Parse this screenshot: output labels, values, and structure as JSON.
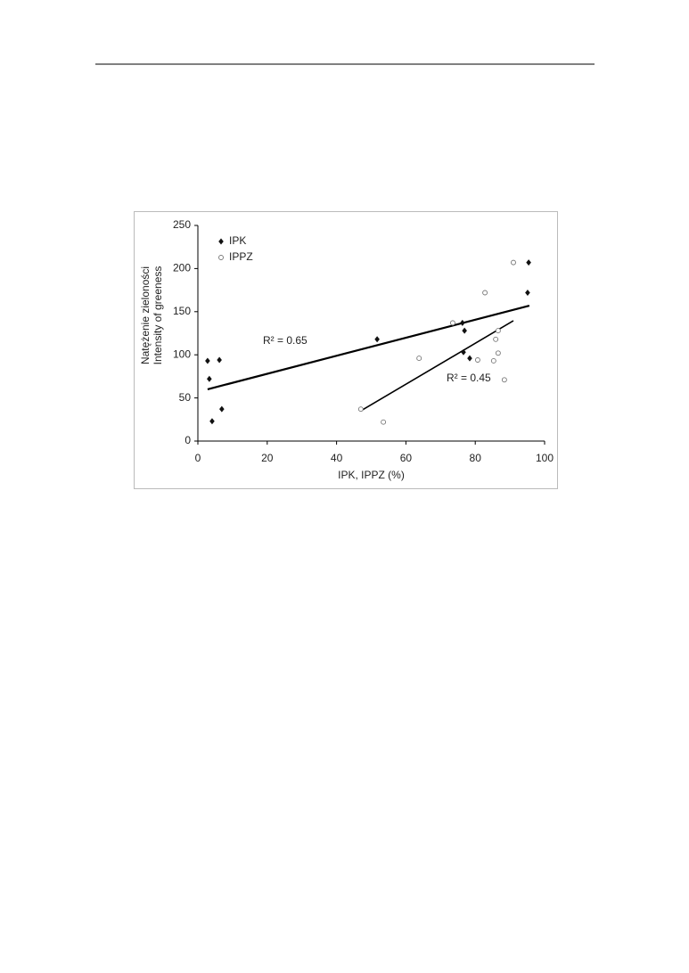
{
  "chart_data": {
    "type": "scatter",
    "xlabel": "IPK, IPPZ (%)",
    "ylabel": [
      "Natężenie zieloności",
      "Intensity of greeness"
    ],
    "xlim": [
      0,
      100
    ],
    "xticks": [
      0,
      20,
      40,
      60,
      80,
      100
    ],
    "ylim": [
      0,
      250
    ],
    "yticks": [
      0,
      50,
      100,
      150,
      200,
      250
    ],
    "series": [
      {
        "name": "IPK",
        "marker": "diamond",
        "color": "#111111",
        "x": [
          2.8,
          3.3,
          4.1,
          6.2,
          6.9,
          51.7,
          76.3,
          76.9,
          76.6,
          78.4,
          95.1,
          95.4
        ],
        "values": [
          93,
          72,
          23,
          94,
          37,
          118,
          137,
          128,
          103,
          96,
          172,
          207
        ]
      },
      {
        "name": "IPPZ",
        "marker": "circle",
        "color": "#777777",
        "x": [
          47,
          53.5,
          63.8,
          73.5,
          80.7,
          82.8,
          85.3,
          85.9,
          86.6,
          86.6,
          88.4,
          91
        ],
        "values": [
          37,
          22,
          96,
          137,
          94,
          172,
          93,
          118,
          102,
          128,
          71,
          207
        ]
      }
    ],
    "trendlines": [
      {
        "x": [
          2.8,
          95.6
        ],
        "values": [
          60,
          157
        ]
      },
      {
        "x": [
          47,
          91
        ],
        "values": [
          35,
          139.5
        ]
      }
    ],
    "annotations": [
      "R² = 0.65",
      "R² = 0.45"
    ]
  }
}
